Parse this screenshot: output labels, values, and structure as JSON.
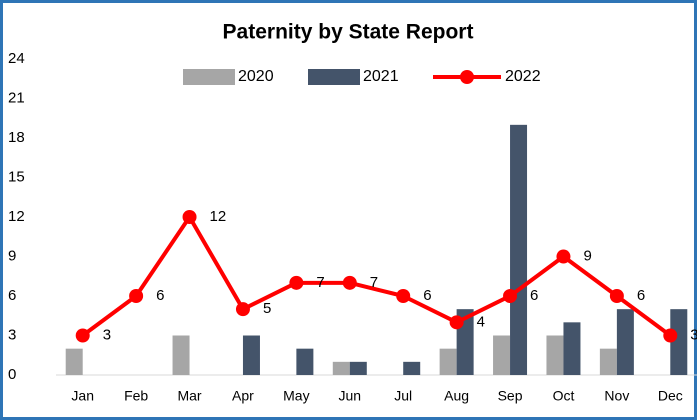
{
  "chart_data": {
    "type": "bar-line",
    "title": "Paternity by State Report",
    "categories": [
      "Jan",
      "Feb",
      "Mar",
      "Apr",
      "May",
      "Jun",
      "Jul",
      "Aug",
      "Sep",
      "Oct",
      "Nov",
      "Dec"
    ],
    "series": [
      {
        "name": "2020",
        "type": "bar",
        "color": "#a6a6a6",
        "values": [
          2,
          0,
          3,
          0,
          0,
          1,
          0,
          2,
          3,
          3,
          2,
          0
        ]
      },
      {
        "name": "2021",
        "type": "bar",
        "color": "#44546a",
        "values": [
          0,
          0,
          0,
          3,
          2,
          1,
          1,
          5,
          19,
          4,
          5,
          5
        ]
      },
      {
        "name": "2022",
        "type": "line",
        "color": "#ff0000",
        "values": [
          3,
          6,
          12,
          5,
          7,
          7,
          6,
          4,
          6,
          9,
          6,
          3
        ],
        "data_labels": true
      }
    ],
    "ylim": [
      0,
      24
    ],
    "yticks": [
      0,
      3,
      6,
      9,
      12,
      15,
      18,
      21,
      24
    ],
    "grid": false
  }
}
